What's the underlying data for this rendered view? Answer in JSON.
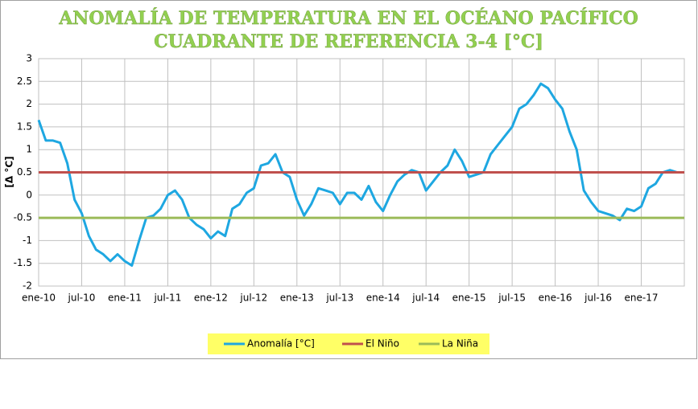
{
  "chart_data": {
    "type": "line",
    "title": "ANOMALÍA DE TEMPERATURA EN EL OCÉANO PACÍFICO",
    "subtitle": "CUADRANTE DE REFERENCIA 3-4 [°C]",
    "y_label": "[Δ °C]",
    "x": [
      "2010-01",
      "2010-02",
      "2010-03",
      "2010-04",
      "2010-05",
      "2010-06",
      "2010-07",
      "2010-08",
      "2010-09",
      "2010-10",
      "2010-11",
      "2010-12",
      "2011-01",
      "2011-02",
      "2011-03",
      "2011-04",
      "2011-05",
      "2011-06",
      "2011-07",
      "2011-08",
      "2011-09",
      "2011-10",
      "2011-11",
      "2011-12",
      "2012-01",
      "2012-02",
      "2012-03",
      "2012-04",
      "2012-05",
      "2012-06",
      "2012-07",
      "2012-08",
      "2012-09",
      "2012-10",
      "2012-11",
      "2012-12",
      "2013-01",
      "2013-02",
      "2013-03",
      "2013-04",
      "2013-05",
      "2013-06",
      "2013-07",
      "2013-08",
      "2013-09",
      "2013-10",
      "2013-11",
      "2013-12",
      "2014-01",
      "2014-02",
      "2014-03",
      "2014-04",
      "2014-05",
      "2014-06",
      "2014-07",
      "2014-08",
      "2014-09",
      "2014-10",
      "2014-11",
      "2014-12",
      "2015-01",
      "2015-02",
      "2015-03",
      "2015-04",
      "2015-05",
      "2015-06",
      "2015-07",
      "2015-08",
      "2015-09",
      "2015-10",
      "2015-11",
      "2015-12",
      "2016-01",
      "2016-02",
      "2016-03",
      "2016-04",
      "2016-05",
      "2016-06",
      "2016-07",
      "2016-08",
      "2016-09",
      "2016-10",
      "2016-11",
      "2016-12",
      "2017-01",
      "2017-02",
      "2017-03",
      "2017-04",
      "2017-05",
      "2017-06"
    ],
    "series": [
      {
        "name": "Anomalía [°C]",
        "color": "#1ea7e1",
        "values": [
          1.65,
          1.2,
          1.2,
          1.15,
          0.7,
          -0.1,
          -0.4,
          -0.9,
          -1.2,
          -1.3,
          -1.45,
          -1.3,
          -1.45,
          -1.55,
          -1.0,
          -0.5,
          -0.45,
          -0.3,
          0.0,
          0.1,
          -0.1,
          -0.5,
          -0.65,
          -0.75,
          -0.95,
          -0.8,
          -0.9,
          -0.3,
          -0.2,
          0.05,
          0.15,
          0.65,
          0.7,
          0.9,
          0.5,
          0.4,
          -0.1,
          -0.45,
          -0.2,
          0.15,
          0.1,
          0.05,
          -0.2,
          0.05,
          0.05,
          -0.1,
          0.2,
          -0.15,
          -0.35,
          0.0,
          0.3,
          0.45,
          0.55,
          0.5,
          0.1,
          0.3,
          0.5,
          0.65,
          1.0,
          0.75,
          0.4,
          0.45,
          0.5,
          0.9,
          1.1,
          1.3,
          1.5,
          1.9,
          2.0,
          2.2,
          2.45,
          2.35,
          2.1,
          1.9,
          1.4,
          1.0,
          0.1,
          -0.15,
          -0.35,
          -0.4,
          -0.45,
          -0.55,
          -0.3,
          -0.35,
          -0.25,
          0.15,
          0.25,
          0.5,
          0.55,
          0.5
        ]
      },
      {
        "name": "El Niño",
        "color": "#c0504d",
        "value": 0.5
      },
      {
        "name": "La Niña",
        "color": "#9bbb59",
        "value": -0.5
      }
    ],
    "xlim": [
      "2010-01",
      "2017-06"
    ],
    "xticks": [
      {
        "value": "2010-01",
        "label": "ene-10"
      },
      {
        "value": "2010-07",
        "label": "jul-10"
      },
      {
        "value": "2011-01",
        "label": "ene-11"
      },
      {
        "value": "2011-07",
        "label": "jul-11"
      },
      {
        "value": "2012-01",
        "label": "ene-12"
      },
      {
        "value": "2012-07",
        "label": "jul-12"
      },
      {
        "value": "2013-01",
        "label": "ene-13"
      },
      {
        "value": "2013-07",
        "label": "jul-13"
      },
      {
        "value": "2014-01",
        "label": "ene-14"
      },
      {
        "value": "2014-07",
        "label": "jul-14"
      },
      {
        "value": "2015-01",
        "label": "ene-15"
      },
      {
        "value": "2015-07",
        "label": "jul-15"
      },
      {
        "value": "2016-01",
        "label": "ene-16"
      },
      {
        "value": "2016-07",
        "label": "jul-16"
      },
      {
        "value": "2017-01",
        "label": "ene-17"
      }
    ],
    "ylim": [
      -2,
      3
    ],
    "yticks": [
      -2,
      -1.5,
      -1,
      -0.5,
      0,
      0.5,
      1,
      1.5,
      2,
      2.5,
      3
    ],
    "grid": true,
    "legend": "bottom"
  }
}
